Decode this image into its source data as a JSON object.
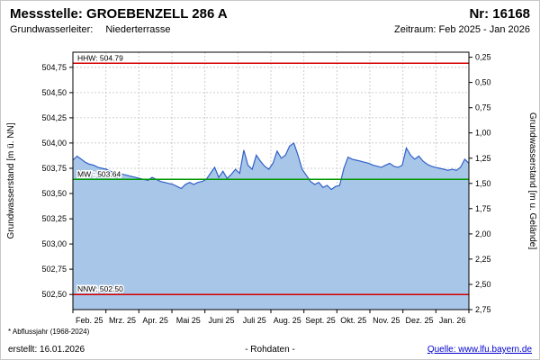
{
  "header": {
    "station_label": "Messstelle: GROEBENZELL 286 A",
    "number_label": "Nr: 16168",
    "aquifer_label": "Grundwasserleiter:",
    "aquifer_value": "Niederterrasse",
    "period_label": "Zeitraum: Feb 2025 - Jan 2026"
  },
  "footer": {
    "note": "* Abflussjahr (1968-2024)",
    "created": "erstellt:  16.01.2026",
    "center": "- Rohdaten -",
    "source": "Quelle: www.lfu.bayern.de",
    "source_color": "#0000cc"
  },
  "chart_data": {
    "type": "area",
    "title": "",
    "x_range": [
      "Feb 2025",
      "Jan 2026"
    ],
    "x_tick_labels": [
      "Feb. 25",
      "Mrz. 25",
      "Apr. 25",
      "Mai 25",
      "Juni 25",
      "Juli 25",
      "Aug. 25",
      "Sept. 25",
      "Okt. 25",
      "Nov. 25",
      "Dez. 25",
      "Jan. 26"
    ],
    "grid": true,
    "y_left": {
      "title": "Grundwasserstand [m ü. NN]",
      "range": [
        502.35,
        504.9
      ],
      "tick_values": [
        504.75,
        504.5,
        504.25,
        504.0,
        503.75,
        503.5,
        503.25,
        503.0,
        502.75,
        502.5
      ],
      "tick_labels": [
        "504,75",
        "504,50",
        "504,25",
        "504,00",
        "503,75",
        "503,50",
        "503,25",
        "503,00",
        "502,75",
        "502,50"
      ]
    },
    "y_right": {
      "title": "Grundwasserstand [m u. Gelände]",
      "ground_elevation_m": 505.1,
      "tick_values": [
        0.25,
        0.5,
        0.75,
        1.0,
        1.25,
        1.5,
        1.75,
        2.0,
        2.25,
        2.5,
        2.75
      ],
      "tick_labels": [
        "0,25",
        "0,50",
        "0,75",
        "1,00",
        "1,25",
        "1,50",
        "1,75",
        "2,00",
        "2,25",
        "2,50",
        "2,75"
      ]
    },
    "reference_lines": [
      {
        "name": "HHW",
        "label": "HHW: 504.79",
        "value": 504.79,
        "color": "#d40000"
      },
      {
        "name": "MW",
        "label": "MW : 503.64",
        "value": 503.64,
        "color": "#009900"
      },
      {
        "name": "NNW",
        "label": "NNW: 502.50",
        "value": 502.5,
        "color": "#d40000"
      }
    ],
    "series": [
      {
        "name": "Grundwasserstand Rohdaten",
        "color": "#3060c8",
        "fill": "#a8c6e8",
        "values": [
          503.83,
          503.87,
          503.84,
          503.81,
          503.79,
          503.78,
          503.76,
          503.75,
          503.74,
          503.72,
          503.71,
          503.7,
          503.69,
          503.68,
          503.67,
          503.66,
          503.65,
          503.64,
          503.63,
          503.66,
          503.64,
          503.62,
          503.61,
          503.6,
          503.59,
          503.57,
          503.55,
          503.59,
          503.61,
          503.59,
          503.61,
          503.62,
          503.64,
          503.7,
          503.76,
          503.66,
          503.72,
          503.65,
          503.69,
          503.74,
          503.7,
          503.93,
          503.78,
          503.74,
          503.88,
          503.82,
          503.77,
          503.74,
          503.8,
          503.92,
          503.85,
          503.88,
          503.97,
          504.0,
          503.88,
          503.74,
          503.68,
          503.62,
          503.59,
          503.61,
          503.56,
          503.58,
          503.54,
          503.57,
          503.58,
          503.75,
          503.86,
          503.84,
          503.83,
          503.82,
          503.81,
          503.8,
          503.78,
          503.77,
          503.76,
          503.78,
          503.8,
          503.77,
          503.76,
          503.78,
          503.95,
          503.88,
          503.84,
          503.87,
          503.82,
          503.79,
          503.77,
          503.76,
          503.75,
          503.74,
          503.73,
          503.74,
          503.73,
          503.76,
          503.84,
          503.8
        ]
      }
    ]
  }
}
